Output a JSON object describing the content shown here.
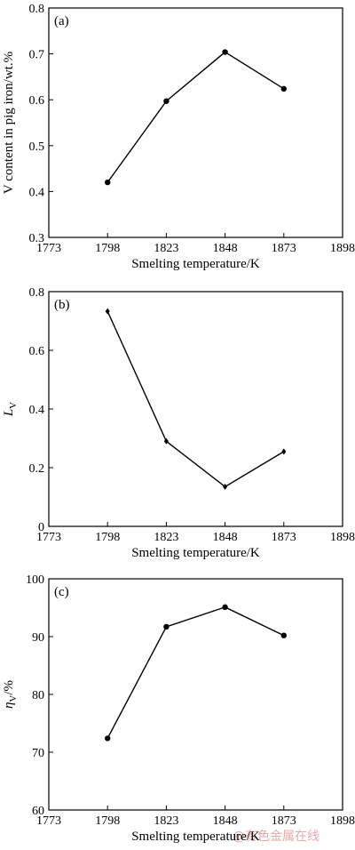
{
  "watermark": "@有色金属在线",
  "chart_data": [
    {
      "type": "line",
      "panel_label": "(a)",
      "xlabel": "Smelting temperature/K",
      "ylabel": "V content in pig iron/wt.%",
      "ylabel_sub": "",
      "ylabel_suffix": "",
      "xlim": [
        1773,
        1898
      ],
      "ylim": [
        0.3,
        0.8
      ],
      "xticks": [
        "1773",
        "1798",
        "1823",
        "1848",
        "1873",
        "1898"
      ],
      "xtick_values": [
        1773,
        1798,
        1823,
        1848,
        1873,
        1898
      ],
      "yticks": [
        "0.3",
        "0.4",
        "0.5",
        "0.6",
        "0.7",
        "0.8"
      ],
      "ytick_values": [
        0.3,
        0.4,
        0.5,
        0.6,
        0.7,
        0.8
      ],
      "marker": "circle",
      "x": [
        1798,
        1823,
        1848,
        1873
      ],
      "y": [
        0.42,
        0.597,
        0.704,
        0.624
      ]
    },
    {
      "type": "line",
      "panel_label": "(b)",
      "xlabel": "Smelting temperature/K",
      "ylabel": "L",
      "ylabel_sub": "V",
      "ylabel_suffix": "",
      "xlim": [
        1773,
        1898
      ],
      "ylim": [
        0,
        0.8
      ],
      "xticks": [
        "1773",
        "1798",
        "1823",
        "1848",
        "1873",
        "1898"
      ],
      "xtick_values": [
        1773,
        1798,
        1823,
        1848,
        1873,
        1898
      ],
      "yticks": [
        "0",
        "0.2",
        "0.4",
        "0.6",
        "0.8"
      ],
      "ytick_values": [
        0,
        0.2,
        0.4,
        0.6,
        0.8
      ],
      "marker": "diamond",
      "x": [
        1798,
        1823,
        1848,
        1873
      ],
      "y": [
        0.733,
        0.29,
        0.135,
        0.255
      ]
    },
    {
      "type": "line",
      "panel_label": "(c)",
      "xlabel": "Smelting temperature/K",
      "ylabel": "η",
      "ylabel_sub": "V",
      "ylabel_suffix": "/%",
      "xlim": [
        1773,
        1898
      ],
      "ylim": [
        60,
        100
      ],
      "xticks": [
        "1773",
        "1798",
        "1823",
        "1848",
        "1873",
        "1898"
      ],
      "xtick_values": [
        1773,
        1798,
        1823,
        1848,
        1873,
        1898
      ],
      "yticks": [
        "60",
        "70",
        "80",
        "90",
        "100"
      ],
      "ytick_values": [
        60,
        70,
        80,
        90,
        100
      ],
      "marker": "circle",
      "x": [
        1798,
        1823,
        1848,
        1873
      ],
      "y": [
        72.4,
        91.7,
        95.1,
        90.2
      ]
    }
  ]
}
